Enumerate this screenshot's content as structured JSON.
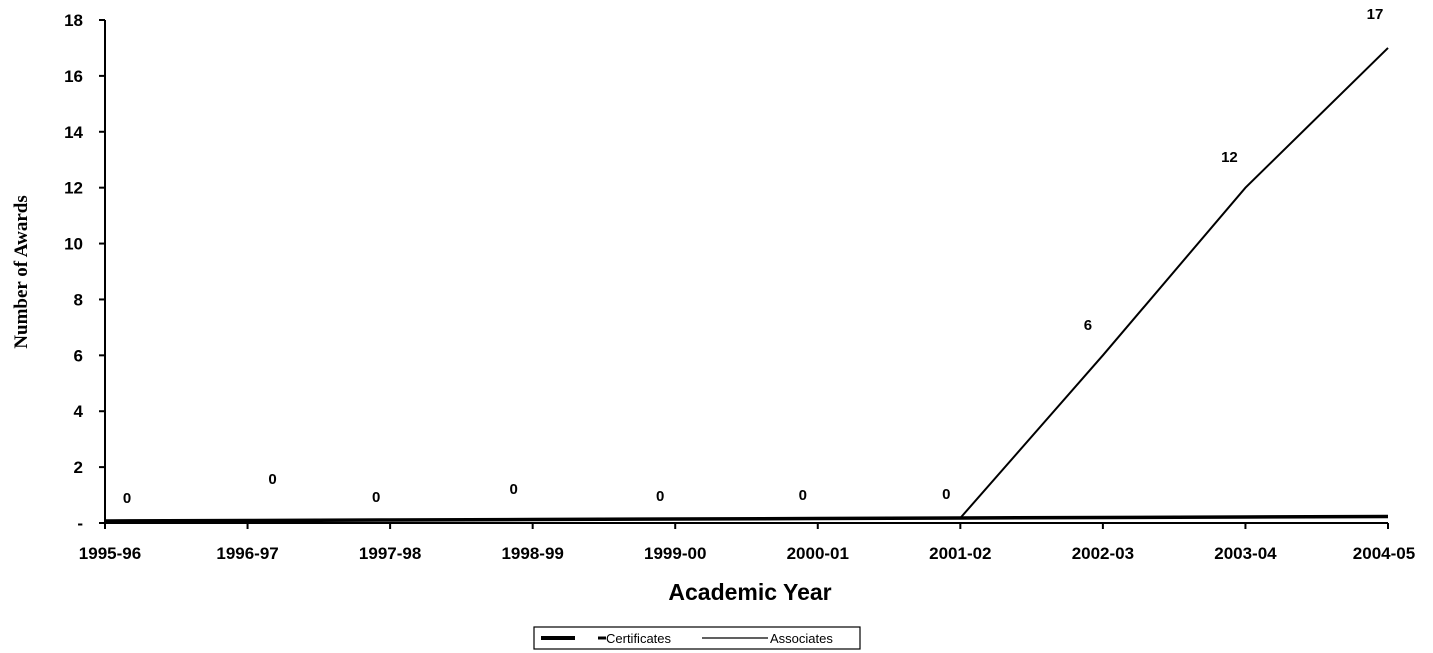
{
  "chart_data": {
    "type": "line",
    "title": "",
    "xlabel": "Academic Year",
    "ylabel": "Number of Awards",
    "categories": [
      "1995-96",
      "1996-97",
      "1997-98",
      "1998-99",
      "1999-00",
      "2000-01",
      "2001-02",
      "2002-03",
      "2003-04",
      "2004-05"
    ],
    "ylim": [
      0,
      18
    ],
    "yticks": [
      "-",
      "2",
      "4",
      "6",
      "8",
      "10",
      "12",
      "14",
      "16",
      "18"
    ],
    "ytick_values": [
      0,
      2,
      4,
      6,
      8,
      10,
      12,
      14,
      16,
      18
    ],
    "grid": false,
    "legend_position": "bottom-center",
    "series": [
      {
        "name": "Certificates",
        "values": [
          0,
          0,
          0,
          0,
          0,
          0,
          0,
          0,
          0,
          0
        ],
        "style": "thick"
      },
      {
        "name": "Associates",
        "values": [
          0,
          0,
          0,
          0,
          0,
          0,
          0,
          6,
          12,
          17
        ],
        "style": "thin"
      }
    ],
    "data_labels": [
      "0",
      "0",
      "0",
      "0",
      "0",
      "0",
      "0",
      "6",
      "12",
      "17"
    ],
    "colors": {
      "line": "#000000",
      "background": "#ffffff"
    }
  }
}
